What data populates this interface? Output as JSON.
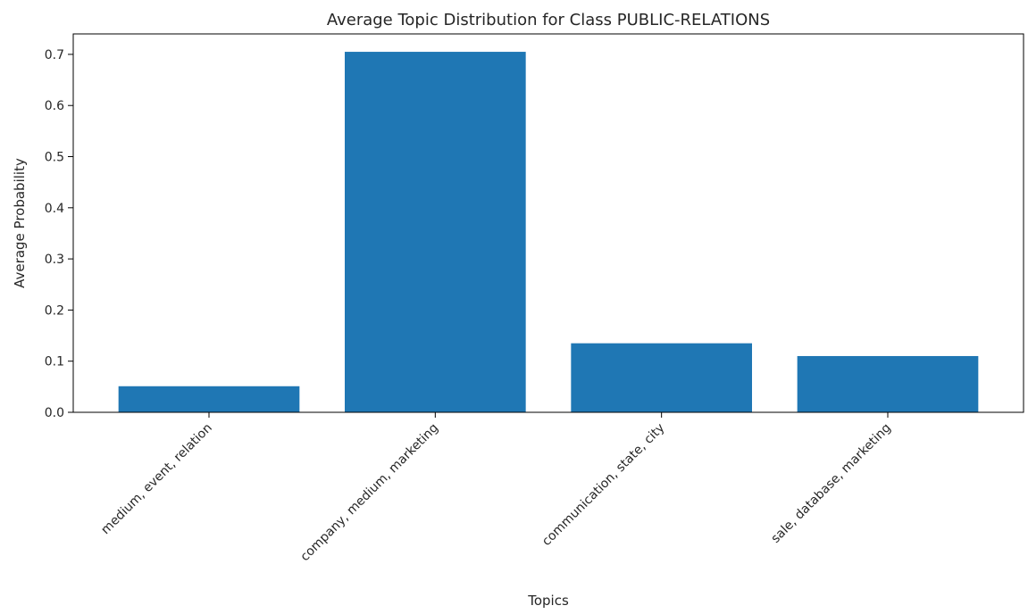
{
  "chart_data": {
    "type": "bar",
    "title": "Average Topic Distribution for Class PUBLIC-RELATIONS",
    "xlabel": "Topics",
    "ylabel": "Average Probability",
    "categories": [
      "medium, event, relation",
      "company, medium, marketing",
      "communication, state, city",
      "sale, database, marketing"
    ],
    "values": [
      0.051,
      0.705,
      0.135,
      0.11
    ],
    "ylim": [
      0,
      0.74
    ],
    "yticks": [
      0.0,
      0.1,
      0.2,
      0.3,
      0.4,
      0.5,
      0.6,
      0.7
    ],
    "ytick_labels": [
      "0.0",
      "0.1",
      "0.2",
      "0.3",
      "0.4",
      "0.5",
      "0.6",
      "0.7"
    ],
    "bar_color": "#1f77b4",
    "grid": false
  }
}
